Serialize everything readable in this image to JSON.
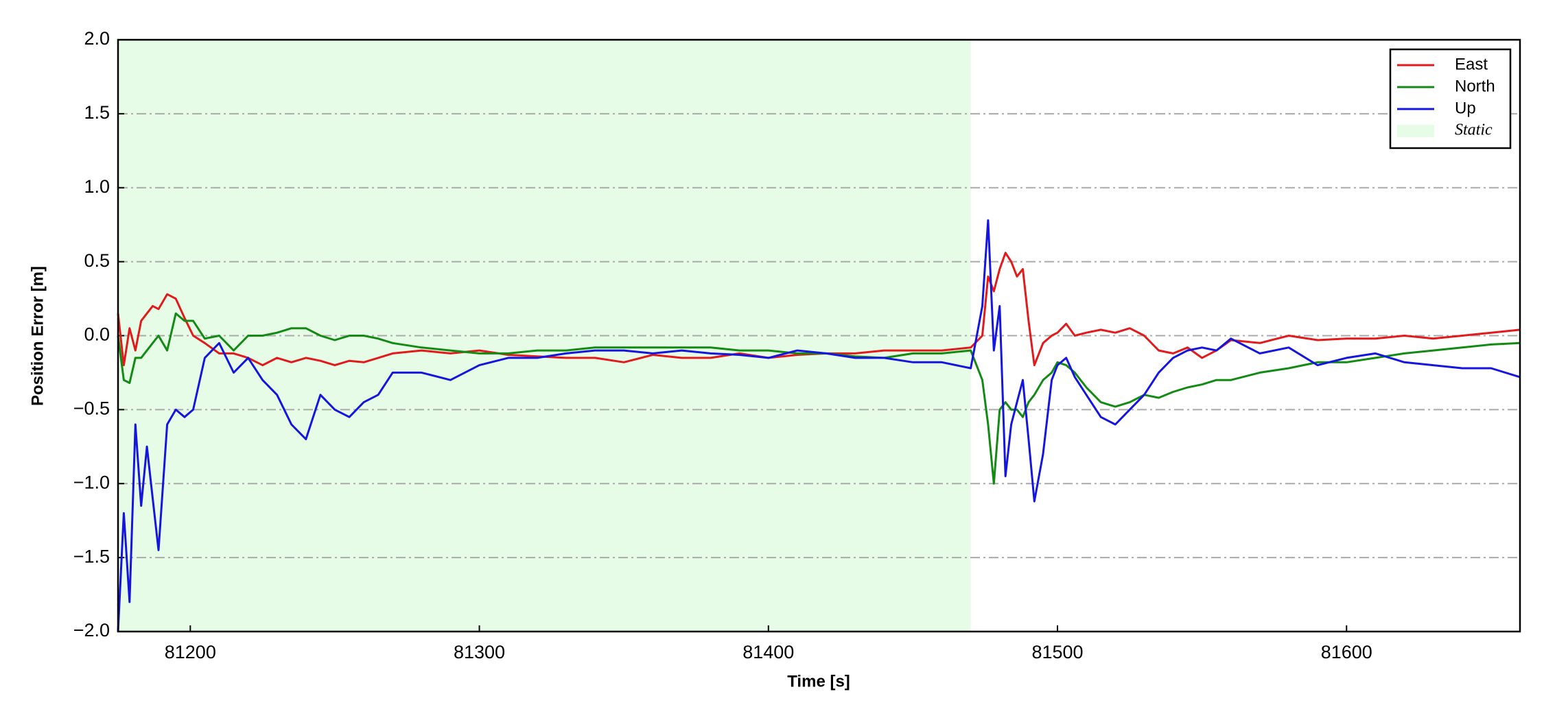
{
  "chart_data": {
    "type": "line",
    "xlabel": "Time [s]",
    "ylabel": "Position Error [m]",
    "x": [
      81175,
      81177,
      81179,
      81181,
      81183,
      81185,
      81187,
      81189,
      81192,
      81195,
      81198,
      81201,
      81205,
      81210,
      81215,
      81220,
      81225,
      81230,
      81235,
      81240,
      81245,
      81250,
      81255,
      81260,
      81265,
      81270,
      81280,
      81290,
      81300,
      81310,
      81320,
      81330,
      81340,
      81350,
      81360,
      81370,
      81380,
      81390,
      81400,
      81410,
      81420,
      81430,
      81440,
      81450,
      81460,
      81470,
      81474,
      81476,
      81478,
      81480,
      81482,
      81484,
      81486,
      81488,
      81490,
      81492,
      81495,
      81498,
      81500,
      81503,
      81506,
      81510,
      81515,
      81520,
      81525,
      81530,
      81535,
      81540,
      81545,
      81550,
      81555,
      81560,
      81570,
      81580,
      81590,
      81600,
      81610,
      81620,
      81630,
      81640,
      81650,
      81660
    ],
    "series": [
      {
        "name": "East",
        "color": "#e31a1c",
        "values": [
          0.15,
          -0.2,
          0.05,
          -0.1,
          0.1,
          0.15,
          0.2,
          0.18,
          0.28,
          0.25,
          0.12,
          0.0,
          -0.05,
          -0.12,
          -0.12,
          -0.15,
          -0.2,
          -0.15,
          -0.18,
          -0.15,
          -0.17,
          -0.2,
          -0.17,
          -0.18,
          -0.15,
          -0.12,
          -0.1,
          -0.12,
          -0.1,
          -0.13,
          -0.14,
          -0.15,
          -0.15,
          -0.18,
          -0.13,
          -0.15,
          -0.15,
          -0.12,
          -0.15,
          -0.13,
          -0.12,
          -0.12,
          -0.1,
          -0.1,
          -0.1,
          -0.08,
          0.0,
          0.4,
          0.3,
          0.45,
          0.56,
          0.5,
          0.4,
          0.45,
          0.1,
          -0.2,
          -0.05,
          0.0,
          0.02,
          0.08,
          0.0,
          0.02,
          0.04,
          0.02,
          0.05,
          0.0,
          -0.1,
          -0.12,
          -0.08,
          -0.15,
          -0.1,
          -0.03,
          -0.05,
          0.0,
          -0.03,
          -0.02,
          -0.02,
          0.0,
          -0.02,
          0.0,
          0.02,
          0.04
        ]
      },
      {
        "name": "North",
        "color": "#138a13",
        "values": [
          0.0,
          -0.3,
          -0.32,
          -0.15,
          -0.15,
          -0.1,
          -0.05,
          0.0,
          -0.1,
          0.15,
          0.1,
          0.1,
          -0.02,
          0.0,
          -0.1,
          0.0,
          0.0,
          0.02,
          0.05,
          0.05,
          0.0,
          -0.03,
          0.0,
          0.0,
          -0.02,
          -0.05,
          -0.08,
          -0.1,
          -0.12,
          -0.12,
          -0.1,
          -0.1,
          -0.08,
          -0.08,
          -0.08,
          -0.08,
          -0.08,
          -0.1,
          -0.1,
          -0.12,
          -0.12,
          -0.14,
          -0.15,
          -0.12,
          -0.12,
          -0.1,
          -0.3,
          -0.6,
          -1.0,
          -0.5,
          -0.45,
          -0.5,
          -0.5,
          -0.55,
          -0.45,
          -0.4,
          -0.3,
          -0.25,
          -0.18,
          -0.2,
          -0.25,
          -0.35,
          -0.45,
          -0.48,
          -0.45,
          -0.4,
          -0.42,
          -0.38,
          -0.35,
          -0.33,
          -0.3,
          -0.3,
          -0.25,
          -0.22,
          -0.18,
          -0.18,
          -0.15,
          -0.12,
          -0.1,
          -0.08,
          -0.06,
          -0.05
        ]
      },
      {
        "name": "Up",
        "color": "#1515e0",
        "values": [
          -2.0,
          -1.2,
          -1.8,
          -0.6,
          -1.15,
          -0.75,
          -1.1,
          -1.45,
          -0.6,
          -0.5,
          -0.55,
          -0.5,
          -0.15,
          -0.05,
          -0.25,
          -0.15,
          -0.3,
          -0.4,
          -0.6,
          -0.7,
          -0.4,
          -0.5,
          -0.55,
          -0.45,
          -0.4,
          -0.25,
          -0.25,
          -0.3,
          -0.2,
          -0.15,
          -0.15,
          -0.12,
          -0.1,
          -0.1,
          -0.12,
          -0.1,
          -0.12,
          -0.13,
          -0.15,
          -0.1,
          -0.12,
          -0.15,
          -0.15,
          -0.18,
          -0.18,
          -0.22,
          0.2,
          0.78,
          -0.1,
          0.2,
          -0.95,
          -0.6,
          -0.45,
          -0.3,
          -0.7,
          -1.12,
          -0.8,
          -0.3,
          -0.2,
          -0.15,
          -0.28,
          -0.4,
          -0.55,
          -0.6,
          -0.5,
          -0.4,
          -0.25,
          -0.15,
          -0.1,
          -0.08,
          -0.1,
          -0.02,
          -0.12,
          -0.08,
          -0.2,
          -0.15,
          -0.12,
          -0.18,
          -0.2,
          -0.22,
          -0.22,
          -0.28
        ]
      }
    ],
    "shaded_regions": [
      {
        "label": "Static",
        "xrange": [
          81175,
          81470
        ],
        "color": "#e6fce6"
      }
    ],
    "xlim": [
      81175,
      81660
    ],
    "xticks": [
      81200,
      81300,
      81400,
      81500,
      81600
    ],
    "ylim": [
      -2.0,
      2.0
    ],
    "yticks": [
      {
        "value": -2.0,
        "label": "−2.0"
      },
      {
        "value": -1.5,
        "label": "−1.5"
      },
      {
        "value": -1.0,
        "label": "−1.0"
      },
      {
        "value": -0.5,
        "label": "−0.5"
      },
      {
        "value": 0.0,
        "label": "0.0"
      },
      {
        "value": 0.5,
        "label": "0.5"
      },
      {
        "value": 1.0,
        "label": "1.0"
      },
      {
        "value": 1.5,
        "label": "1.5"
      },
      {
        "value": 2.0,
        "label": "2.0"
      }
    ],
    "grid": true,
    "legend": "upper right"
  }
}
